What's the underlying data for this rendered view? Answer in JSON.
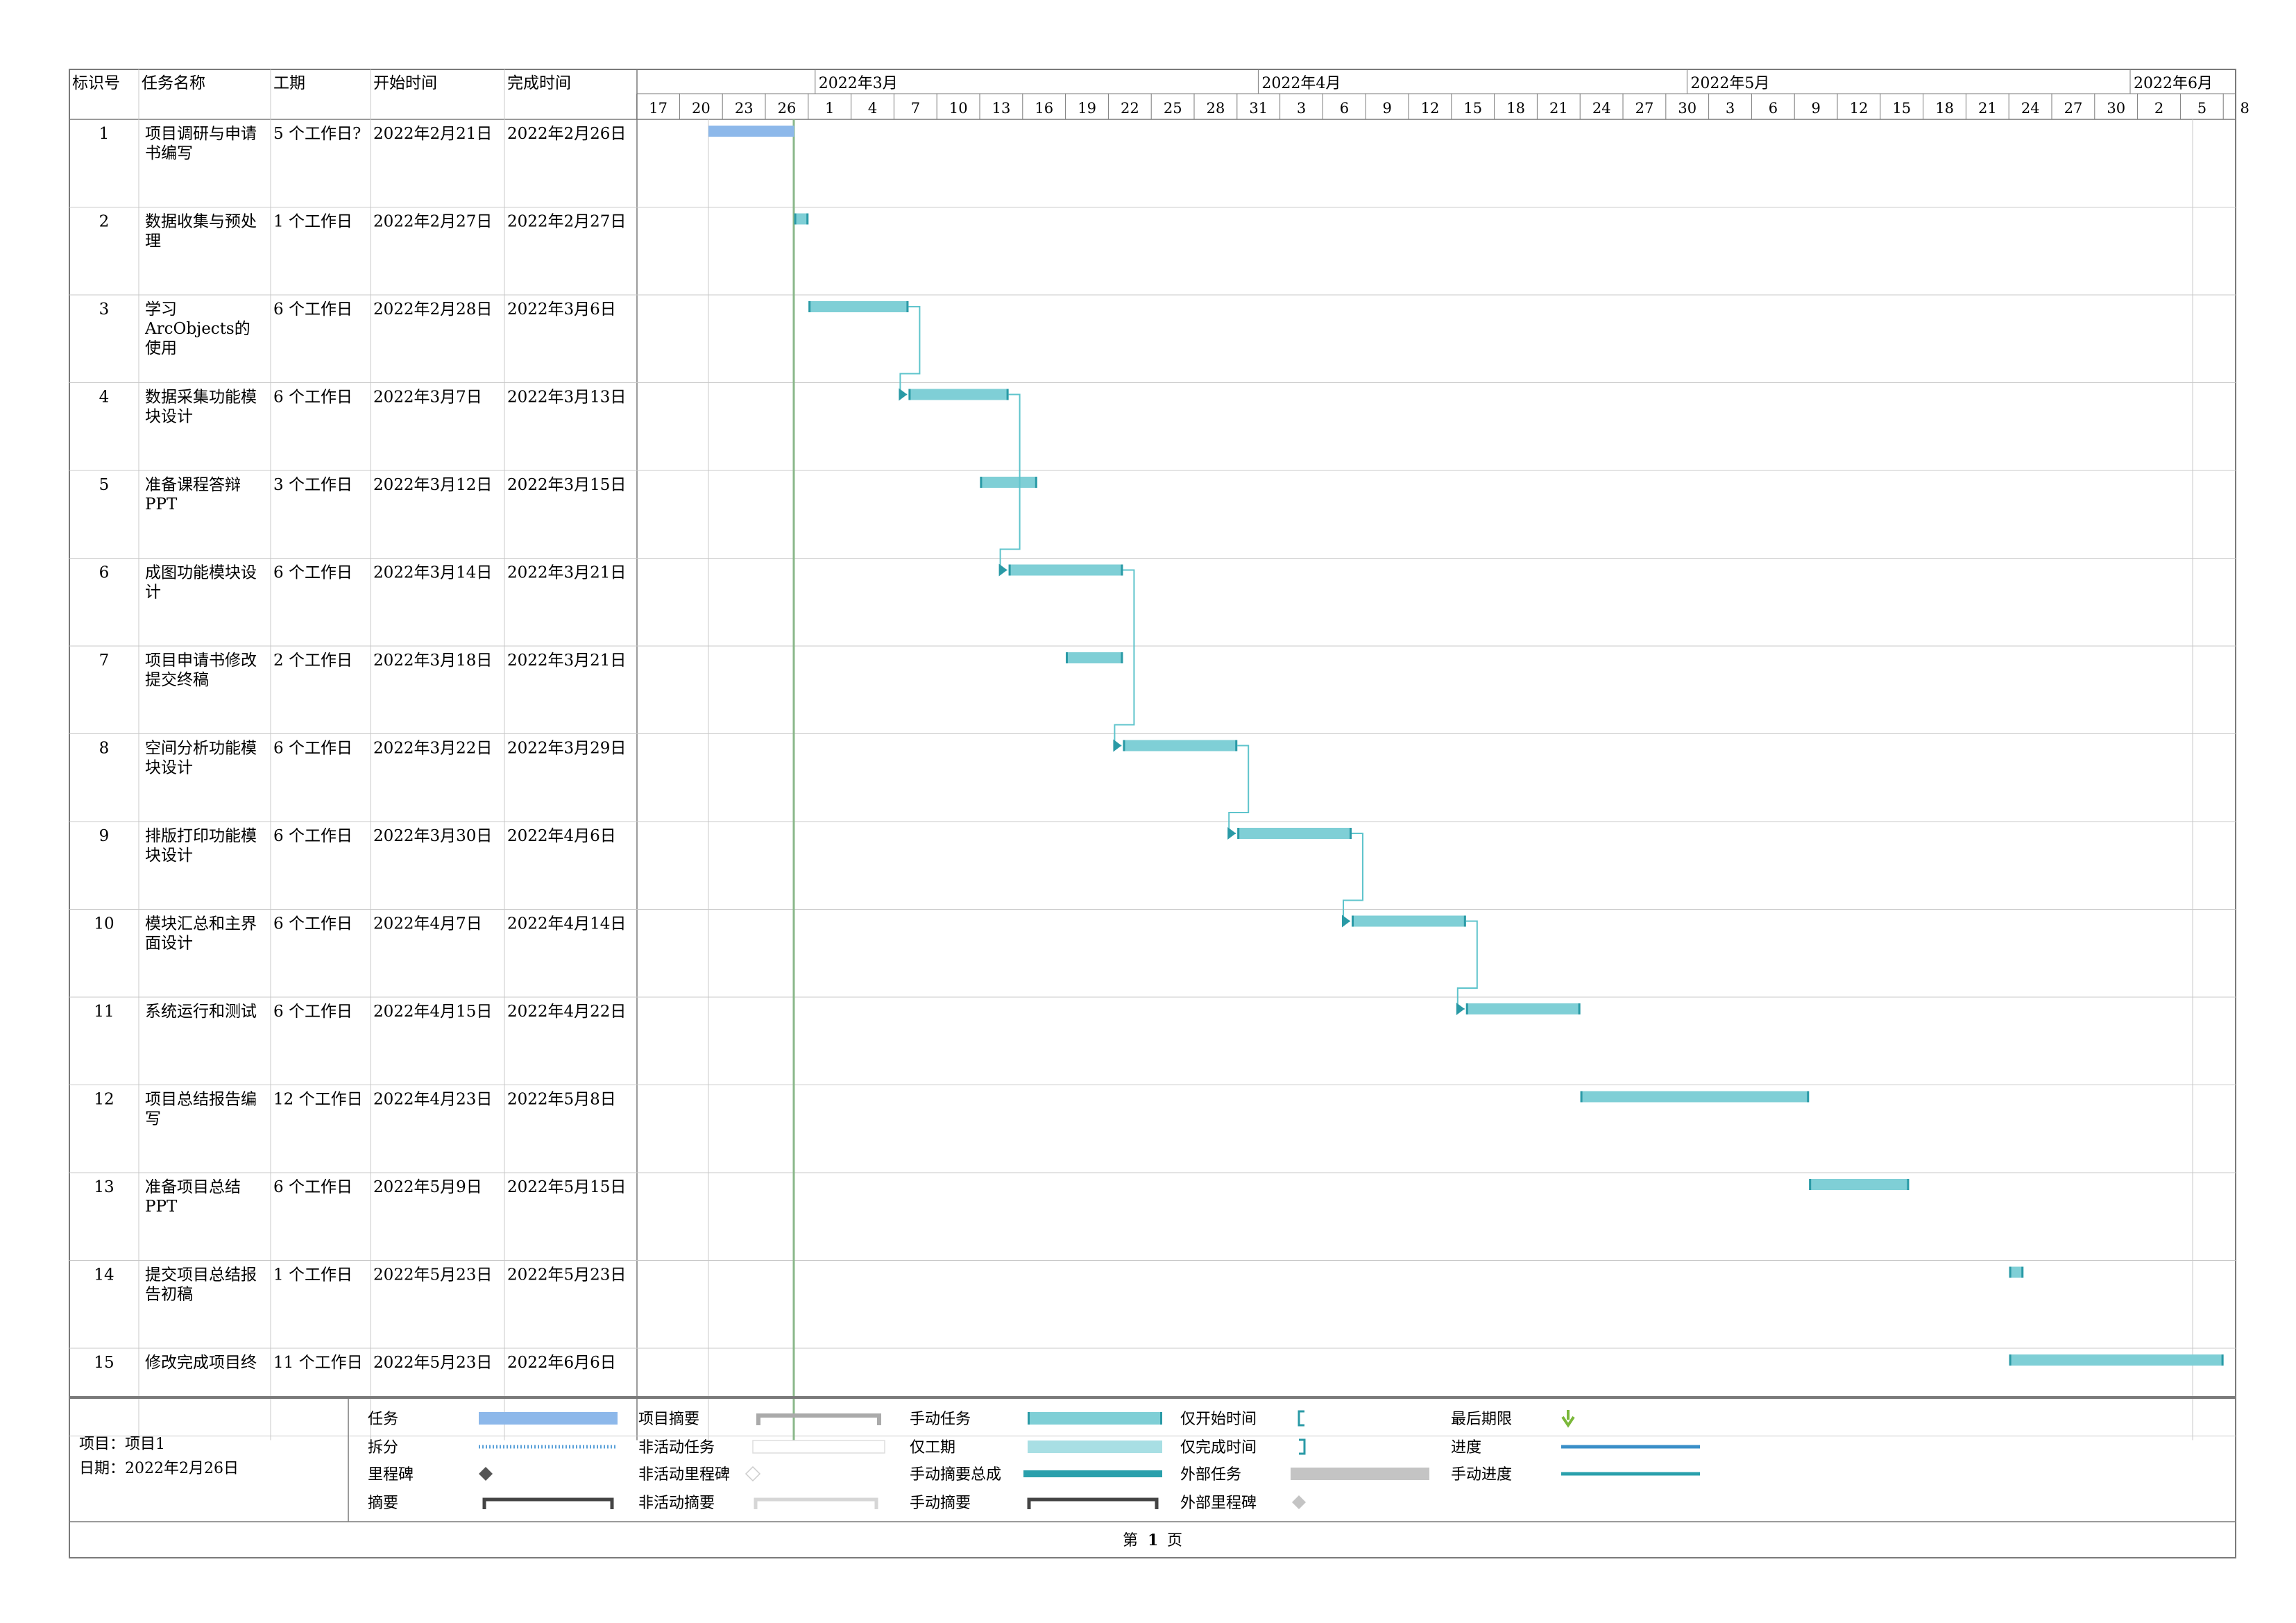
{
  "headers": [
    "标识号",
    "任务名称",
    "工期",
    "开始时间",
    "完成时间"
  ],
  "months": [
    "2022年3月",
    "2022年4月",
    "2022年5月",
    "2022年6月"
  ],
  "day_ticks": [
    "17",
    "20",
    "23",
    "26",
    "1",
    "4",
    "7",
    "10",
    "13",
    "16",
    "19",
    "22",
    "25",
    "28",
    "31",
    "3",
    "6",
    "9",
    "12",
    "15",
    "18",
    "21",
    "24",
    "27",
    "30",
    "3",
    "6",
    "9",
    "12",
    "15",
    "18",
    "21",
    "24",
    "27",
    "30",
    "2",
    "5",
    "8"
  ],
  "tasks": [
    {
      "id": "1",
      "name": [
        "项目调研与申请",
        "书编写"
      ],
      "duration": "5 个工作日?",
      "start": "2022年2月21日",
      "finish": "2022年2月26日",
      "bar_start": "2022-02-21",
      "bar_end": "2022-02-26",
      "style": "task"
    },
    {
      "id": "2",
      "name": [
        "数据收集与预处",
        "理"
      ],
      "duration": "1 个工作日",
      "start": "2022年2月27日",
      "finish": "2022年2月27日",
      "bar_start": "2022-02-27",
      "bar_end": "2022-02-27",
      "style": "manual"
    },
    {
      "id": "3",
      "name": [
        "学习",
        "ArcObjects的",
        "使用"
      ],
      "duration": "6 个工作日",
      "start": "2022年2月28日",
      "finish": "2022年3月6日",
      "bar_start": "2022-02-28",
      "bar_end": "2022-03-06",
      "style": "manual"
    },
    {
      "id": "4",
      "name": [
        "数据采集功能模",
        "块设计"
      ],
      "duration": "6 个工作日",
      "start": "2022年3月7日",
      "finish": "2022年3月13日",
      "bar_start": "2022-03-07",
      "bar_end": "2022-03-13",
      "style": "manual"
    },
    {
      "id": "5",
      "name": [
        "准备课程答辩",
        "PPT"
      ],
      "duration": "3 个工作日",
      "start": "2022年3月12日",
      "finish": "2022年3月15日",
      "bar_start": "2022-03-12",
      "bar_end": "2022-03-15",
      "style": "manual"
    },
    {
      "id": "6",
      "name": [
        "成图功能模块设",
        "计"
      ],
      "duration": "6 个工作日",
      "start": "2022年3月14日",
      "finish": "2022年3月21日",
      "bar_start": "2022-03-14",
      "bar_end": "2022-03-21",
      "style": "manual"
    },
    {
      "id": "7",
      "name": [
        "项目申请书修改",
        "提交终稿"
      ],
      "duration": "2 个工作日",
      "start": "2022年3月18日",
      "finish": "2022年3月21日",
      "bar_start": "2022-03-18",
      "bar_end": "2022-03-21",
      "style": "manual"
    },
    {
      "id": "8",
      "name": [
        "空间分析功能模",
        "块设计"
      ],
      "duration": "6 个工作日",
      "start": "2022年3月22日",
      "finish": "2022年3月29日",
      "bar_start": "2022-03-22",
      "bar_end": "2022-03-29",
      "style": "manual"
    },
    {
      "id": "9",
      "name": [
        "排版打印功能模",
        "块设计"
      ],
      "duration": "6 个工作日",
      "start": "2022年3月30日",
      "finish": "2022年4月6日",
      "bar_start": "2022-03-30",
      "bar_end": "2022-04-06",
      "style": "manual"
    },
    {
      "id": "10",
      "name": [
        "模块汇总和主界",
        "面设计"
      ],
      "duration": "6 个工作日",
      "start": "2022年4月7日",
      "finish": "2022年4月14日",
      "bar_start": "2022-04-07",
      "bar_end": "2022-04-14",
      "style": "manual"
    },
    {
      "id": "11",
      "name": [
        "系统运行和测试"
      ],
      "duration": "6 个工作日",
      "start": "2022年4月15日",
      "finish": "2022年4月22日",
      "bar_start": "2022-04-15",
      "bar_end": "2022-04-22",
      "style": "manual"
    },
    {
      "id": "12",
      "name": [
        "项目总结报告编",
        "写"
      ],
      "duration": "12 个工作日",
      "start": "2022年4月23日",
      "finish": "2022年5月8日",
      "bar_start": "2022-04-23",
      "bar_end": "2022-05-08",
      "style": "manual"
    },
    {
      "id": "13",
      "name": [
        "准备项目总结",
        "PPT"
      ],
      "duration": "6 个工作日",
      "start": "2022年5月9日",
      "finish": "2022年5月15日",
      "bar_start": "2022-05-09",
      "bar_end": "2022-05-15",
      "style": "manual"
    },
    {
      "id": "14",
      "name": [
        "提交项目总结报",
        "告初稿"
      ],
      "duration": "1 个工作日",
      "start": "2022年5月23日",
      "finish": "2022年5月23日",
      "bar_start": "2022-05-23",
      "bar_end": "2022-05-23",
      "style": "manual"
    },
    {
      "id": "15",
      "name": [
        "修改完成项目终"
      ],
      "duration": "11 个工作日",
      "start": "2022年5月23日",
      "finish": "2022年6月6日",
      "bar_start": "2022-05-23",
      "bar_end": "2022-06-06",
      "style": "manual"
    }
  ],
  "links": [
    {
      "from": "3",
      "to": "4"
    },
    {
      "from": "4",
      "to": "6"
    },
    {
      "from": "6",
      "to": "8"
    },
    {
      "from": "8",
      "to": "9"
    },
    {
      "from": "9",
      "to": "10"
    },
    {
      "from": "10",
      "to": "11"
    }
  ],
  "status_date": "2022-02-26",
  "project": {
    "label": "项目：项目1",
    "date": "日期：2022年2月26日"
  },
  "legend": [
    [
      {
        "label": "任务",
        "sym": "task"
      },
      {
        "label": "拆分",
        "sym": "split"
      },
      {
        "label": "里程碑",
        "sym": "milestone"
      },
      {
        "label": "摘要",
        "sym": "summary"
      }
    ],
    [
      {
        "label": "项目摘要",
        "sym": "project-summary"
      },
      {
        "label": "非活动任务",
        "sym": "inactive-task"
      },
      {
        "label": "非活动里程碑",
        "sym": "inactive-milestone"
      },
      {
        "label": "非活动摘要",
        "sym": "inactive-summary"
      }
    ],
    [
      {
        "label": "手动任务",
        "sym": "manual-task"
      },
      {
        "label": "仅工期",
        "sym": "duration-only"
      },
      {
        "label": "手动摘要总成",
        "sym": "manual-summary-rollup"
      },
      {
        "label": "手动摘要",
        "sym": "manual-summary"
      }
    ],
    [
      {
        "label": "仅开始时间",
        "sym": "start-only"
      },
      {
        "label": "仅完成时间",
        "sym": "finish-only"
      },
      {
        "label": "外部任务",
        "sym": "external-task"
      },
      {
        "label": "外部里程碑",
        "sym": "external-milestone"
      }
    ],
    [
      {
        "label": "最后期限",
        "sym": "deadline"
      },
      {
        "label": "进度",
        "sym": "progress"
      },
      {
        "label": "手动进度",
        "sym": "manual-progress"
      }
    ]
  ],
  "page_footer": {
    "prefix": "第",
    "number": "1",
    "suffix": "页"
  },
  "colors": {
    "task": "#8db8ea",
    "manual": "#7fcfd6",
    "manual_edge": "#2a9aa6",
    "link": "#5fc4cc",
    "grid": "#c8c8c8",
    "border": "#7a7a7a",
    "status_line": "#8ab88a",
    "milestone": "#555555",
    "deadline": "#7bb83a",
    "progress": "#3a8fc8"
  },
  "chart_data": {
    "type": "gantt",
    "tasks": [
      {
        "id": "1",
        "name": "项目调研与申请书编写",
        "start": "2022-02-21",
        "end": "2022-02-26"
      },
      {
        "id": "2",
        "name": "数据收集与预处理",
        "start": "2022-02-27",
        "end": "2022-02-27"
      },
      {
        "id": "3",
        "name": "学习ArcObjects的使用",
        "start": "2022-02-28",
        "end": "2022-03-06"
      },
      {
        "id": "4",
        "name": "数据采集功能模块设计",
        "start": "2022-03-07",
        "end": "2022-03-13"
      },
      {
        "id": "5",
        "name": "准备课程答辩PPT",
        "start": "2022-03-12",
        "end": "2022-03-15"
      },
      {
        "id": "6",
        "name": "成图功能模块设计",
        "start": "2022-03-14",
        "end": "2022-03-21"
      },
      {
        "id": "7",
        "name": "项目申请书修改提交终稿",
        "start": "2022-03-18",
        "end": "2022-03-21"
      },
      {
        "id": "8",
        "name": "空间分析功能模块设计",
        "start": "2022-03-22",
        "end": "2022-03-29"
      },
      {
        "id": "9",
        "name": "排版打印功能模块设计",
        "start": "2022-03-30",
        "end": "2022-04-06"
      },
      {
        "id": "10",
        "name": "模块汇总和主界面设计",
        "start": "2022-04-07",
        "end": "2022-04-14"
      },
      {
        "id": "11",
        "name": "系统运行和测试",
        "start": "2022-04-15",
        "end": "2022-04-22"
      },
      {
        "id": "12",
        "name": "项目总结报告编写",
        "start": "2022-04-23",
        "end": "2022-05-08"
      },
      {
        "id": "13",
        "name": "准备项目总结PPT",
        "start": "2022-05-09",
        "end": "2022-05-15"
      },
      {
        "id": "14",
        "name": "提交项目总结报告初稿",
        "start": "2022-05-23",
        "end": "2022-05-23"
      },
      {
        "id": "15",
        "name": "修改完成项目终",
        "start": "2022-05-23",
        "end": "2022-06-06"
      }
    ],
    "xlim": [
      "2022-02-16",
      "2022-06-08"
    ]
  }
}
